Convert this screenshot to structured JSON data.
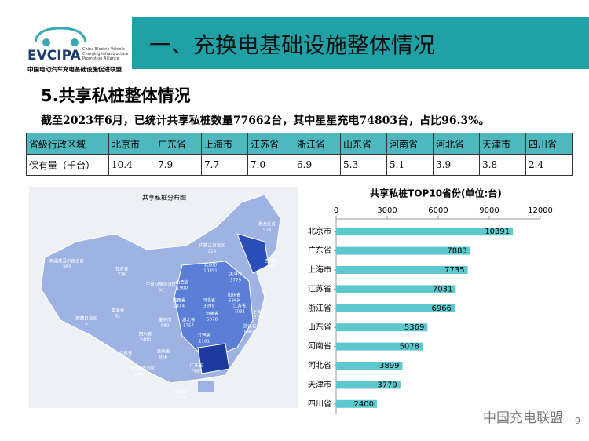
{
  "header": {
    "logo": "EVCIPA",
    "logo_en": "China Electric Vehicle Charging Infrastructure Promotion Alliance",
    "logo_cn": "中国电动汽车充电基础设施促进联盟",
    "title": "一、充换电基础设施整体情况"
  },
  "section": "5.共享私桩整体情况",
  "summary": "截至2023年6月，已统计共享私桩数量77662台，其中星星充电74803台，占比96.3%。",
  "table": {
    "rows": [
      [
        "省级行政区域",
        "北京市",
        "广东省",
        "上海市",
        "江苏省",
        "浙江省",
        "山东省",
        "河南省",
        "河北省",
        "天津市",
        "四川省"
      ],
      [
        "保有量（千台）",
        "10.4",
        "7.9",
        "7.7",
        "7.0",
        "6.9",
        "5.3",
        "5.1",
        "3.9",
        "3.8",
        "2.4"
      ]
    ]
  },
  "map": {
    "title": "共享私桩分布图",
    "regions": [
      {
        "name": "黑龙江省",
        "value": 574
      },
      {
        "name": "吉林省",
        "value": 186
      },
      {
        "name": "内蒙古自治区",
        "value": 224
      },
      {
        "name": "新疆维吾尔自治区",
        "value": 383
      },
      {
        "name": "甘肃省",
        "value": 776
      },
      {
        "name": "宁夏回族自治区",
        "value": 99
      },
      {
        "name": "山西省",
        "value": 1900
      },
      {
        "name": "北京市",
        "value": 10391
      },
      {
        "name": "天津市",
        "value": 3779
      },
      {
        "name": "河北省",
        "value": 3899
      },
      {
        "name": "山东省",
        "value": 5369
      },
      {
        "name": "陕西省",
        "value": 1414
      },
      {
        "name": "河南省",
        "value": 5078
      },
      {
        "name": "青海省",
        "value": 91
      },
      {
        "name": "西藏自治区",
        "value": 0
      },
      {
        "name": "江苏省",
        "value": 7031
      },
      {
        "name": "上海市",
        "value": 7735
      },
      {
        "name": "湖北省",
        "value": 1757
      },
      {
        "name": "浙江省",
        "value": 6966
      },
      {
        "name": "四川省",
        "value": 2400
      },
      {
        "name": "重庆市",
        "value": 980
      },
      {
        "name": "江西省",
        "value": 1101
      },
      {
        "name": "贵州省",
        "value": 856
      },
      {
        "name": "云南省",
        "value": 786
      },
      {
        "name": "广西壮族自治区",
        "value": 1404
      },
      {
        "name": "广东省",
        "value": 7883
      },
      {
        "name": "海南省",
        "value": 829
      }
    ]
  },
  "chart_data": {
    "type": "bar",
    "orientation": "horizontal",
    "title": "共享私桩TOP10省份(单位:台)",
    "categories": [
      "北京市",
      "广东省",
      "上海市",
      "江苏省",
      "浙江省",
      "山东省",
      "河南省",
      "河北省",
      "天津市",
      "四川省"
    ],
    "values": [
      10391,
      7883,
      7735,
      7031,
      6966,
      5369,
      5078,
      3899,
      3779,
      2400
    ],
    "color": "#5ec8cf",
    "xlim": [
      0,
      12000
    ],
    "xticks": [
      0,
      3000,
      6000,
      9000,
      12000
    ]
  },
  "footer": {
    "watermark": "中国充电联盟",
    "page": "9"
  }
}
